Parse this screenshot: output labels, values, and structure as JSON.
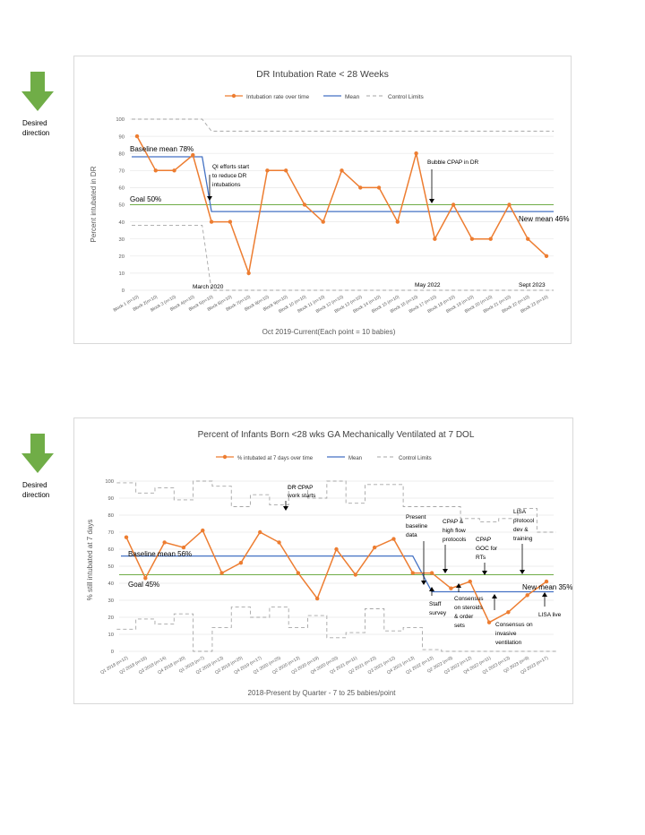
{
  "side_arrow": {
    "color": "#70ad47",
    "caption_1": "Desired",
    "caption_2": "direction"
  },
  "chart_data": [
    {
      "type": "line",
      "title": "DR Intubation Rate < 28 Weeks",
      "xlabel": "Oct 2019-Current(Each point = 10 babies)",
      "ylabel": "Percent intubated in DR",
      "ylim": [
        0,
        100
      ],
      "yticks": [
        0,
        10,
        20,
        30,
        40,
        50,
        60,
        70,
        80,
        90,
        100
      ],
      "grid": true,
      "legend_position": "top",
      "legend": [
        "Intubation rate over time",
        "Mean",
        "Control Limits"
      ],
      "colors": {
        "series": "#ed7d31",
        "mean": "#4472c4",
        "goal": "#70ad47",
        "control": "#a6a6a6"
      },
      "categories": [
        "Block 1 (n=10)",
        "Block 2(n=10)",
        "Block 3 (n=10)",
        "Block 4(n=10)",
        "Block 5(n=10)",
        "Block 6(n=10)",
        "Block 7(n=10)",
        "Block 8(n=10)",
        "Block 9(n=10)",
        "Block 10 (n=10)",
        "Block 11 (n=10)",
        "Block 12 (n=10)",
        "Block 13 (n=10)",
        "Block 14 (n=10)",
        "Block 15 (n=10)",
        "Block 16 (n=10)",
        "Block 17 (n=10)",
        "Block 18 (n=10)",
        "Block 19 (n=10)",
        "Block 20 (n=10)",
        "Block 21 (n=10)",
        "Block 22 (n=10)",
        "Block 23 (n=10)"
      ],
      "series": [
        {
          "name": "Intubation rate over time",
          "values": [
            90,
            70,
            70,
            79,
            40,
            40,
            10,
            70,
            70,
            50,
            40,
            70,
            60,
            60,
            40,
            80,
            30,
            50,
            30,
            30,
            50,
            30,
            20
          ]
        }
      ],
      "mean_segments": [
        {
          "from_index": 0,
          "to_index": 3.5,
          "value": 78
        },
        {
          "from_index": 4,
          "to_index": 22,
          "value": 46
        }
      ],
      "goal": 50,
      "control_limits": {
        "upper": [
          {
            "from": 0,
            "to": 3.5,
            "value": 100
          },
          {
            "from": 4,
            "to": 22,
            "value": 93
          }
        ],
        "lower": [
          {
            "from": 0,
            "to": 3.5,
            "value": 38
          },
          {
            "from": 4,
            "to": 22,
            "value": 0
          }
        ]
      },
      "annotations": {
        "baseline": "Baseline mean 78%",
        "goal": "Goal 50%",
        "new_mean": "New mean 46%",
        "qi_1": "QI efforts start",
        "qi_2": "to reduce DR",
        "qi_3": "intubations",
        "bubble": "Bubble CPAP in DR",
        "march": "March 2020",
        "may": "May 2022",
        "sept": "Sept 2023"
      }
    },
    {
      "type": "line",
      "title": "Percent of Infants Born <28 wks GA Mechanically Ventilated at 7 DOL",
      "xlabel": "2018-Present by Quarter - 7 to 25 babies/point",
      "ylabel": "% still intubated at 7 days",
      "ylim": [
        0,
        100
      ],
      "yticks": [
        0,
        10,
        20,
        30,
        40,
        50,
        60,
        70,
        80,
        90,
        100
      ],
      "grid": true,
      "legend_position": "top",
      "legend": [
        "% intubated at 7 days over time",
        "Mean",
        "Control Limits"
      ],
      "colors": {
        "series": "#ed7d31",
        "mean": "#4472c4",
        "goal": "#70ad47",
        "control": "#a6a6a6"
      },
      "categories": [
        "Q1 2018 (n=12)",
        "Q2 2018 (n=16)",
        "Q3 2018 (n=14)",
        "Q4 2018 (n=20)",
        "Q1 2019 (n=7)",
        "Q2 2019 (n=13)",
        "Q3 2019 (n=25)",
        "Q4 2019 (n=17)",
        "Q1 2020 (n=25)",
        "Q2 2020 (n=13)",
        "Q3 2020 (n=19)",
        "Q4 2020 (n=20)",
        "Q1 2021 (n=11)",
        "Q2 2021 (n=23)",
        "Q3 2021 (n=12)",
        "Q4 2021 (n=13)",
        "Q1 2022 (n=13)",
        "Q2 2022 (n=8)",
        "Q3 2022 (n=12)",
        "Q4 2022 (n=11)",
        "Q1 2023 (n=13)",
        "Q2 2023 (n=9)",
        "Q3 2023 (n=17)"
      ],
      "series": [
        {
          "name": "% intubated at 7 days over time",
          "values": [
            67,
            43,
            64,
            61,
            71,
            46,
            52,
            70,
            64,
            46,
            31,
            60,
            45,
            61,
            66,
            46,
            46,
            37,
            41,
            17,
            23,
            33,
            41
          ]
        }
      ],
      "mean_segments": [
        {
          "from_index": 0,
          "to_index": 15,
          "value": 56
        },
        {
          "from_index": 15,
          "to_index": 16,
          "value_from": 56,
          "value_to": 35
        },
        {
          "from_index": 16,
          "to_index": 22,
          "value": 35
        }
      ],
      "goal": 45,
      "control_limits": {
        "upper": [
          99,
          93,
          96,
          89,
          100,
          97,
          85,
          92,
          86,
          97,
          90,
          100,
          87,
          98,
          98,
          85,
          85,
          85,
          78,
          76,
          78,
          84,
          70
        ],
        "lower": [
          13,
          19,
          16,
          22,
          0,
          14,
          26,
          20,
          26,
          14,
          21,
          8,
          11,
          25,
          12,
          14,
          1,
          0,
          0,
          0,
          0,
          0,
          0
        ]
      },
      "annotations": {
        "dr_1": "DR CPAP",
        "dr_2": "work starts",
        "present_1": "Present",
        "present_2": "baseline",
        "present_3": "data",
        "cpap_1": "CPAP &",
        "cpap_2": "high flow",
        "cpap_3": "protocols",
        "goc_1": "CPAP",
        "goc_2": "GOC for",
        "goc_3": "RTs",
        "lisa_1": "LISA",
        "lisa_2": "protocol",
        "lisa_3": "dev &",
        "lisa_4": "training",
        "baseline": "Baseline mean 56%",
        "goal": "Goal 45%",
        "new_mean": "New mean 35%",
        "staff_1": "Staff",
        "staff_2": "survey",
        "cons_1": "Consensus",
        "cons_2": "on steroids",
        "cons_3": "& order",
        "cons_4": "sets",
        "inv_1": "Consensus on",
        "inv_2": "invasive",
        "inv_3": "ventilation",
        "lisa_live": "LISA live"
      }
    }
  ]
}
